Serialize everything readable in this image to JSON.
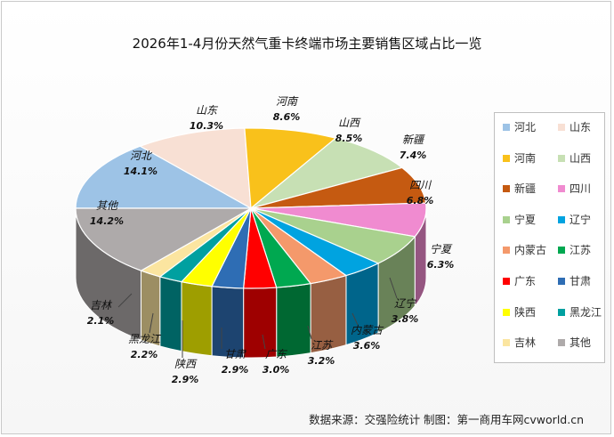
{
  "title": "2026年1-4月份天然气重卡终端市场主要销售区域占比一览",
  "source": "数据来源：交强险统计   制图：第一商用车网cvworld.cn",
  "chart_data": {
    "type": "pie",
    "title": "2026年1-4月份天然气重卡终端市场主要销售区域占比一览",
    "legend_position": "right",
    "slices": [
      {
        "name": "河北",
        "value": 14.1,
        "label": "14.1%",
        "color": "#9dc3e6"
      },
      {
        "name": "山东",
        "value": 10.3,
        "label": "10.3%",
        "color": "#f8e0d4"
      },
      {
        "name": "河南",
        "value": 8.6,
        "label": "8.6%",
        "color": "#f9c11b"
      },
      {
        "name": "山西",
        "value": 8.5,
        "label": "8.5%",
        "color": "#c7e0b4"
      },
      {
        "name": "新疆",
        "value": 7.4,
        "label": "7.4%",
        "color": "#c55a11"
      },
      {
        "name": "四川",
        "value": 6.8,
        "label": "6.8%",
        "color": "#f08bd0"
      },
      {
        "name": "宁夏",
        "value": 6.3,
        "label": "6.3%",
        "color": "#a9d18e"
      },
      {
        "name": "辽宁",
        "value": 3.8,
        "label": "3.8%",
        "color": "#00a3e0"
      },
      {
        "name": "内蒙古",
        "value": 3.6,
        "label": "3.6%",
        "color": "#f4996b"
      },
      {
        "name": "江苏",
        "value": 3.2,
        "label": "3.2%",
        "color": "#00a850"
      },
      {
        "name": "广东",
        "value": 3.0,
        "label": "3.0%",
        "color": "#ff0000"
      },
      {
        "name": "甘肃",
        "value": 2.9,
        "label": "2.9%",
        "color": "#2e6db4"
      },
      {
        "name": "陕西",
        "value": 2.9,
        "label": "2.9%",
        "color": "#ffff00"
      },
      {
        "name": "黑龙江",
        "value": 2.2,
        "label": "2.2%",
        "color": "#00a0a0"
      },
      {
        "name": "吉林",
        "value": 2.1,
        "label": "2.1%",
        "color": "#fbe5a0"
      },
      {
        "name": "其他",
        "value": 14.2,
        "label": "14.2%",
        "color": "#aeaaaa"
      }
    ]
  }
}
